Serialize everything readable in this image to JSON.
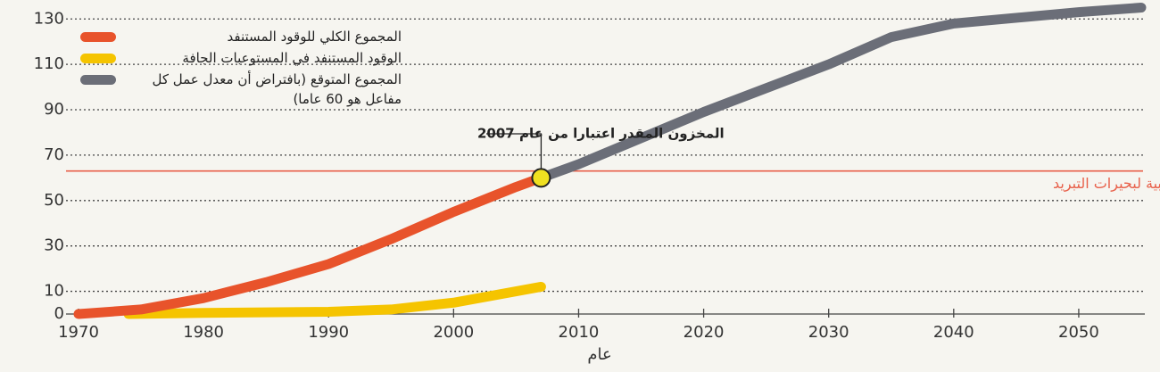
{
  "chart_data": {
    "type": "line",
    "x_label": "عام",
    "series": [
      {
        "name": "المجموع الكلي للوقود المستنفد",
        "color": "#e8532b",
        "x": [
          1970,
          1975,
          1980,
          1985,
          1990,
          1995,
          2000,
          2005,
          2007
        ],
        "values": [
          0,
          2,
          7,
          14,
          22,
          33,
          45,
          56,
          60
        ]
      },
      {
        "name": "الوقود المستنفد في المستوعبات الجافة",
        "color": "#f5c400",
        "x": [
          1974,
          1980,
          1990,
          1995,
          2000,
          2005,
          2007
        ],
        "values": [
          0,
          0.5,
          1,
          2,
          5,
          10,
          12
        ]
      },
      {
        "name": "المجموع المتوقع (بافتراض أن معدل عمل كل مفاعل هو 60 عاما)",
        "color": "#6b6e78",
        "x": [
          2007,
          2010,
          2020,
          2030,
          2035,
          2040,
          2050,
          2055
        ],
        "values": [
          60,
          66,
          89,
          110,
          122,
          128,
          133,
          135
        ]
      }
    ],
    "reference_line": {
      "value": 63,
      "label": "الطاقة الاستيعابية لبحيرات التبريد",
      "color": "#e8604a"
    },
    "annotation": "المخزون المقدر اعتبارا من عام 2007",
    "xlim": [
      1970,
      2056
    ],
    "xticks": [
      1970,
      1980,
      1990,
      2000,
      2010,
      2020,
      2030,
      2040,
      2050
    ],
    "ylim": [
      0,
      136
    ],
    "yticks": [
      0,
      10,
      30,
      50,
      70,
      90,
      110,
      130
    ],
    "grid": true
  }
}
